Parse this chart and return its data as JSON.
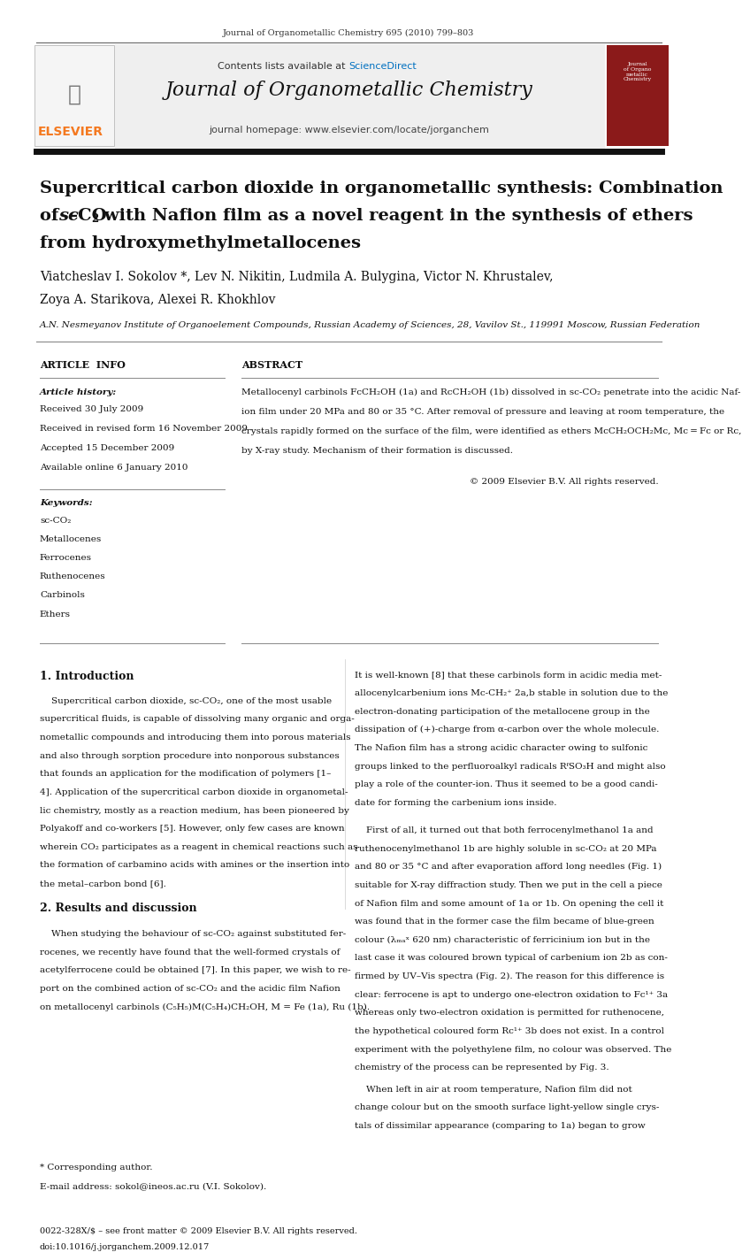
{
  "page_width": 9.92,
  "page_height": 13.23,
  "background": "#ffffff",
  "journal_ref": "Journal of Organometallic Chemistry 695 (2010) 799–803",
  "sciencedirect_color": "#0070c0",
  "journal_title": "Journal of Organometallic Chemistry",
  "journal_homepage": "journal homepage: www.elsevier.com/locate/jorganchem",
  "elsevier_orange": "#f47920",
  "article_title_line1": "Supercritical carbon dioxide in organometallic synthesis: Combination",
  "article_title_line3": "from hydroxymethylmetallocenes",
  "authors": "Viatcheslav I. Sokolov *, Lev N. Nikitin, Ludmila A. Bulygina, Victor N. Khrustalev,",
  "authors2": "Zoya A. Starikova, Alexei R. Khokhlov",
  "affiliation": "A.N. Nesmeyanov Institute of Organoelement Compounds, Russian Academy of Sciences, 28, Vavilov St., 119991 Moscow, Russian Federation",
  "article_info_label": "ARTICLE  INFO",
  "abstract_label": "ABSTRACT",
  "article_history_label": "Article history:",
  "received": "Received 30 July 2009",
  "revised": "Received in revised form 16 November 2009",
  "accepted": "Accepted 15 December 2009",
  "online": "Available online 6 January 2010",
  "keywords_label": "Keywords:",
  "keywords": [
    "sc-CO₂",
    "Metallocenes",
    "Ferrocenes",
    "Ruthenocenes",
    "Carbinols",
    "Ethers"
  ],
  "copyright": "© 2009 Elsevier B.V. All rights reserved.",
  "section1_title": "1. Introduction",
  "section2_title": "2. Results and discussion",
  "footnote_star": "* Corresponding author.",
  "footnote_email": "E-mail address: sokol@ineos.ac.ru (V.I. Sokolov).",
  "footer_left": "0022-328X/$ – see front matter © 2009 Elsevier B.V. All rights reserved.",
  "footer_doi": "doi:10.1016/j.jorganchem.2009.12.017",
  "abstract_lines": [
    "Metallocenyl carbinols FcCH₂OH (1a) and RcCH₂OH (1b) dissolved in sc-CO₂ penetrate into the acidic Naf-",
    "ion film under 20 MPa and 80 or 35 °C. After removal of pressure and leaving at room temperature, the",
    "crystals rapidly formed on the surface of the film, were identified as ethers McCH₂OCH₂Mc, Mc = Fc or Rc,",
    "by X-ray study. Mechanism of their formation is discussed."
  ],
  "intro_lines": [
    "    Supercritical carbon dioxide, sc-CO₂, one of the most usable",
    "supercritical fluids, is capable of dissolving many organic and orga-",
    "nometallic compounds and introducing them into porous materials",
    "and also through sorption procedure into nonporous substances",
    "that founds an application for the modification of polymers [1–",
    "4]. Application of the supercritical carbon dioxide in organometal-",
    "lic chemistry, mostly as a reaction medium, has been pioneered by",
    "Polyakoff and co-workers [5]. However, only few cases are known",
    "wherein CO₂ participates as a reagent in chemical reactions such as",
    "the formation of carbamino acids with amines or the insertion into",
    "the metal–carbon bond [6]."
  ],
  "s2_lines": [
    "    When studying the behaviour of sc-CO₂ against substituted fer-",
    "rocenes, we recently have found that the well-formed crystals of",
    "acetylferrocene could be obtained [7]. In this paper, we wish to re-",
    "port on the combined action of sc-CO₂ and the acidic film Nafion",
    "on metallocenyl carbinols (C₅H₅)M(C₅H₄)CH₂OH, M = Fe (1a), Ru (1b)."
  ],
  "right_lines1": [
    "It is well-known [8] that these carbinols form in acidic media met-",
    "allocenylcarbenium ions Mc-CH₂⁺ 2a,b stable in solution due to the",
    "electron-donating participation of the metallocene group in the",
    "dissipation of (+)-charge from α-carbon over the whole molecule.",
    "The Nafion film has a strong acidic character owing to sulfonic",
    "groups linked to the perfluoroalkyl radicals RᶠSO₃H and might also",
    "play a role of the counter-ion. Thus it seemed to be a good candi-",
    "date for forming the carbenium ions inside."
  ],
  "right_lines2": [
    "    First of all, it turned out that both ferrocenylmethanol 1a and",
    "ruthenocenylmethanol 1b are highly soluble in sc-CO₂ at 20 MPa",
    "and 80 or 35 °C and after evaporation afford long needles (Fig. 1)",
    "suitable for X-ray diffraction study. Then we put in the cell a piece",
    "of Nafion film and some amount of 1a or 1b. On opening the cell it",
    "was found that in the former case the film became of blue-green",
    "colour (λₘₐˣ 620 nm) characteristic of ferricinium ion but in the",
    "last case it was coloured brown typical of carbenium ion 2b as con-",
    "firmed by UV–Vis spectra (Fig. 2). The reason for this difference is",
    "clear: ferrocene is apt to undergo one-electron oxidation to Fc¹⁺ 3a",
    "whereas only two-electron oxidation is permitted for ruthenocene,",
    "the hypothetical coloured form Rc¹⁺ 3b does not exist. In a control",
    "experiment with the polyethylene film, no colour was observed. The",
    "chemistry of the process can be represented by Fig. 3."
  ],
  "right_lines3": [
    "    When left in air at room temperature, Nafion film did not",
    "change colour but on the smooth surface light-yellow single crys-",
    "tals of dissimilar appearance (comparing to 1a) began to grow"
  ]
}
